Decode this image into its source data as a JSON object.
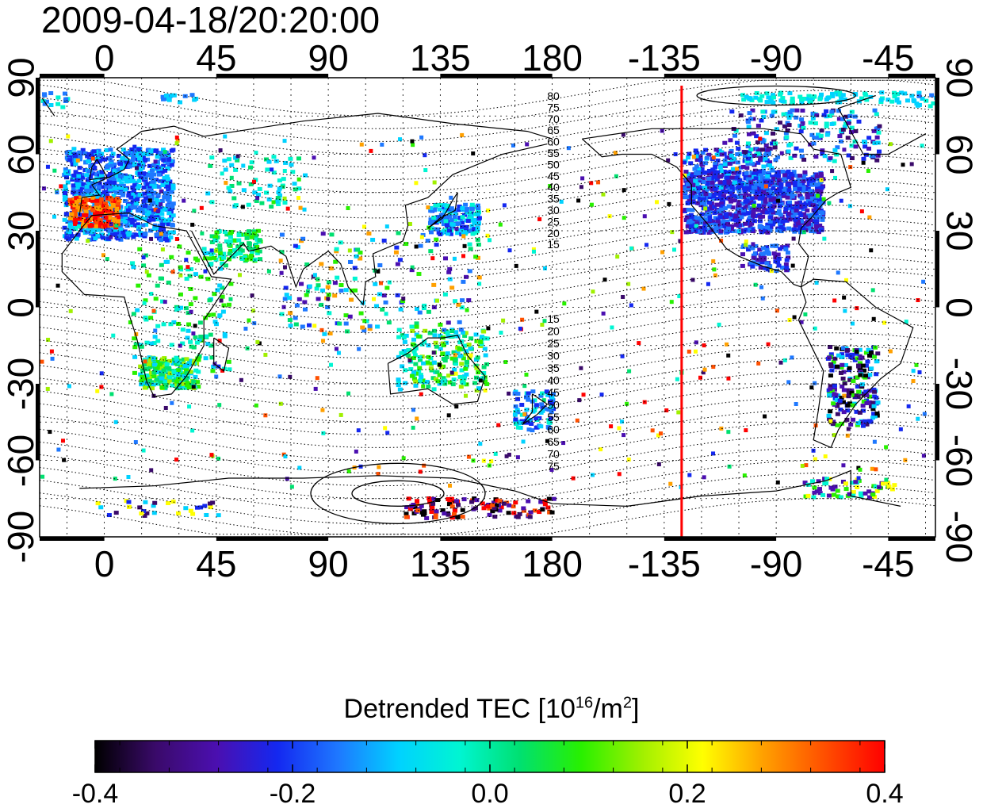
{
  "timestamp": "2009-04-18/20:20:00",
  "map": {
    "top_axis_ticks": [
      "0",
      "45",
      "90",
      "135",
      "180",
      "-135",
      "-90",
      "-45"
    ],
    "bottom_axis_ticks": [
      "0",
      "45",
      "90",
      "135",
      "180",
      "-135",
      "-90",
      "-45"
    ],
    "left_axis_ticks": [
      "90",
      "60",
      "30",
      "0",
      "-30",
      "-60",
      "-90"
    ],
    "right_axis_ticks": [
      "90",
      "60",
      "30",
      "0",
      "-30",
      "-60",
      "-90"
    ],
    "contour_labels_north": [
      "80",
      "75",
      "70",
      "65",
      "60",
      "55",
      "50",
      "45",
      "40",
      "35",
      "30",
      "25",
      "20",
      "15"
    ],
    "contour_labels_south": [
      "15",
      "20",
      "25",
      "30",
      "35",
      "40",
      "45",
      "50",
      "55",
      "60",
      "65",
      "70",
      "75"
    ],
    "terminator_line_color": "#ff0000",
    "terminator_longitude": -128
  },
  "colorbar": {
    "title_prefix": "Detrended TEC  [10",
    "title_exp1": "16",
    "title_mid": "/m",
    "title_exp2": "2",
    "title_suffix": "]",
    "ticks": [
      "-0.4",
      "-0.2",
      "0.0",
      "0.2",
      "0.4"
    ],
    "colors": [
      "#000000",
      "#3a0a6a",
      "#4b0fb0",
      "#1428f0",
      "#1e78ff",
      "#00d2ff",
      "#00f5d2",
      "#00e070",
      "#28f000",
      "#a0f000",
      "#ffff00",
      "#ffa000",
      "#ff5000",
      "#ff0000"
    ]
  }
}
